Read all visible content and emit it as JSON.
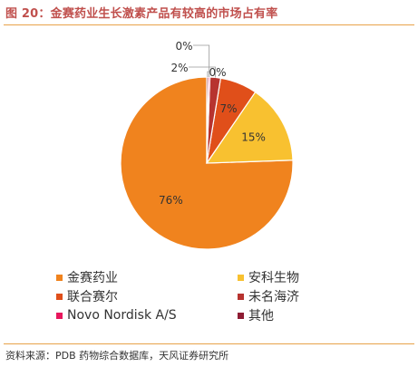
{
  "header": {
    "title": "图 20：金赛药业生长激素产品有较高的市场占有率"
  },
  "footer": {
    "source": "资料来源：PDB 药物综合数据库，天风证券研究所"
  },
  "chart_data": {
    "type": "pie",
    "title": "",
    "legend_placement": "bottom",
    "slices": [
      {
        "name": "金赛药业",
        "value": 76,
        "label": "76%",
        "color": "#f0831e"
      },
      {
        "name": "安科生物",
        "value": 15,
        "label": "15%",
        "color": "#f8c130"
      },
      {
        "name": "联合赛尔",
        "value": 7,
        "label": "7%",
        "color": "#e04f1a"
      },
      {
        "name": "未名海济",
        "value": 2,
        "label": "2%",
        "color": "#b7332f"
      },
      {
        "name": "Novo Nordisk A/S",
        "value": 0.3,
        "label": "0%",
        "color": "#e8175d"
      },
      {
        "name": "其他",
        "value": 0.3,
        "label": "0%",
        "color": "#8e1c33"
      }
    ]
  }
}
